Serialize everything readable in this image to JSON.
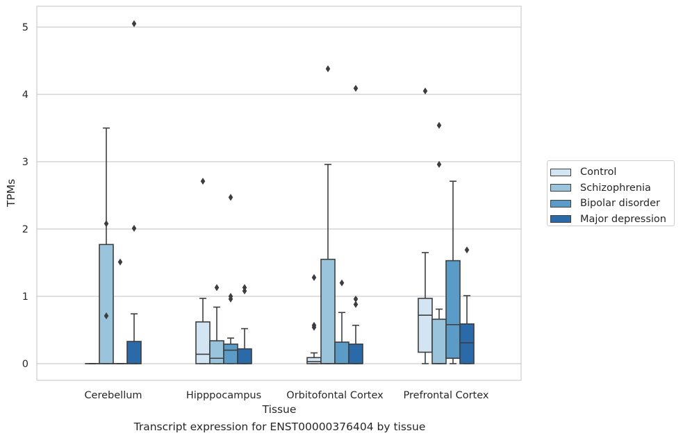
{
  "chart_data": {
    "type": "box",
    "xlabel": "Tissue",
    "ylabel": "TPMs",
    "ylim": [
      -0.25,
      5.3
    ],
    "yticks": [
      0,
      1,
      2,
      3,
      4,
      5
    ],
    "grid": true,
    "legend_position": "right",
    "categories": [
      "Cerebellum",
      "Hipppocampus",
      "Orbitofontal Cortex",
      "Prefrontal Cortex"
    ],
    "series": [
      {
        "name": "Control",
        "color": "#d3e4f3",
        "boxes": [
          {
            "min": 0,
            "q1": 0,
            "median": 0,
            "q3": 0,
            "max": 0,
            "outliers": []
          },
          {
            "min": 0,
            "q1": 0,
            "median": 0.14,
            "q3": 0.62,
            "max": 0.97,
            "outliers": [
              2.71
            ]
          },
          {
            "min": 0,
            "q1": 0,
            "median": 0.03,
            "q3": 0.09,
            "max": 0.16,
            "outliers": [
              0.54,
              0.57,
              1.28
            ]
          },
          {
            "min": 0,
            "q1": 0.17,
            "median": 0.72,
            "q3": 0.97,
            "max": 1.65,
            "outliers": [
              4.05
            ]
          }
        ]
      },
      {
        "name": "Schizophrenia",
        "color": "#9ac3dc",
        "boxes": [
          {
            "min": 0,
            "q1": 0,
            "median": 0,
            "q3": 1.77,
            "max": 3.5,
            "outliers": [
              0.71,
              2.08
            ]
          },
          {
            "min": 0,
            "q1": 0,
            "median": 0.08,
            "q3": 0.34,
            "max": 0.84,
            "outliers": [
              1.13
            ]
          },
          {
            "min": 0,
            "q1": 0,
            "median": 0,
            "q3": 1.55,
            "max": 2.96,
            "outliers": [
              4.38
            ]
          },
          {
            "min": 0,
            "q1": 0,
            "median": 0,
            "q3": 0.66,
            "max": 0.81,
            "outliers": [
              2.96,
              3.54
            ]
          }
        ]
      },
      {
        "name": "Bipolar disorder",
        "color": "#5b9bc8",
        "boxes": [
          {
            "min": 0,
            "q1": 0,
            "median": 0,
            "q3": 0,
            "max": 0,
            "outliers": [
              1.51
            ]
          },
          {
            "min": 0,
            "q1": 0,
            "median": 0.2,
            "q3": 0.29,
            "max": 0.38,
            "outliers": [
              0.96,
              1.0,
              2.47
            ]
          },
          {
            "min": 0,
            "q1": 0,
            "median": 0,
            "q3": 0.32,
            "max": 0.76,
            "outliers": [
              1.2
            ]
          },
          {
            "min": 0,
            "q1": 0.08,
            "median": 0.58,
            "q3": 1.53,
            "max": 2.71,
            "outliers": []
          }
        ]
      },
      {
        "name": "Major depression",
        "color": "#2b6aa9",
        "boxes": [
          {
            "min": 0,
            "q1": 0,
            "median": 0,
            "q3": 0.33,
            "max": 0.74,
            "outliers": [
              2.01,
              5.05
            ]
          },
          {
            "min": 0,
            "q1": 0,
            "median": 0,
            "q3": 0.22,
            "max": 0.52,
            "outliers": [
              1.08,
              1.13
            ]
          },
          {
            "min": 0,
            "q1": 0,
            "median": 0,
            "q3": 0.29,
            "max": 0.57,
            "outliers": [
              0.88,
              0.96,
              4.09
            ]
          },
          {
            "min": 0,
            "q1": 0,
            "median": 0.31,
            "q3": 0.59,
            "max": 1.01,
            "outliers": [
              1.69
            ]
          }
        ]
      }
    ]
  },
  "caption": "Transcript expression for ENST00000376404 by tissue"
}
